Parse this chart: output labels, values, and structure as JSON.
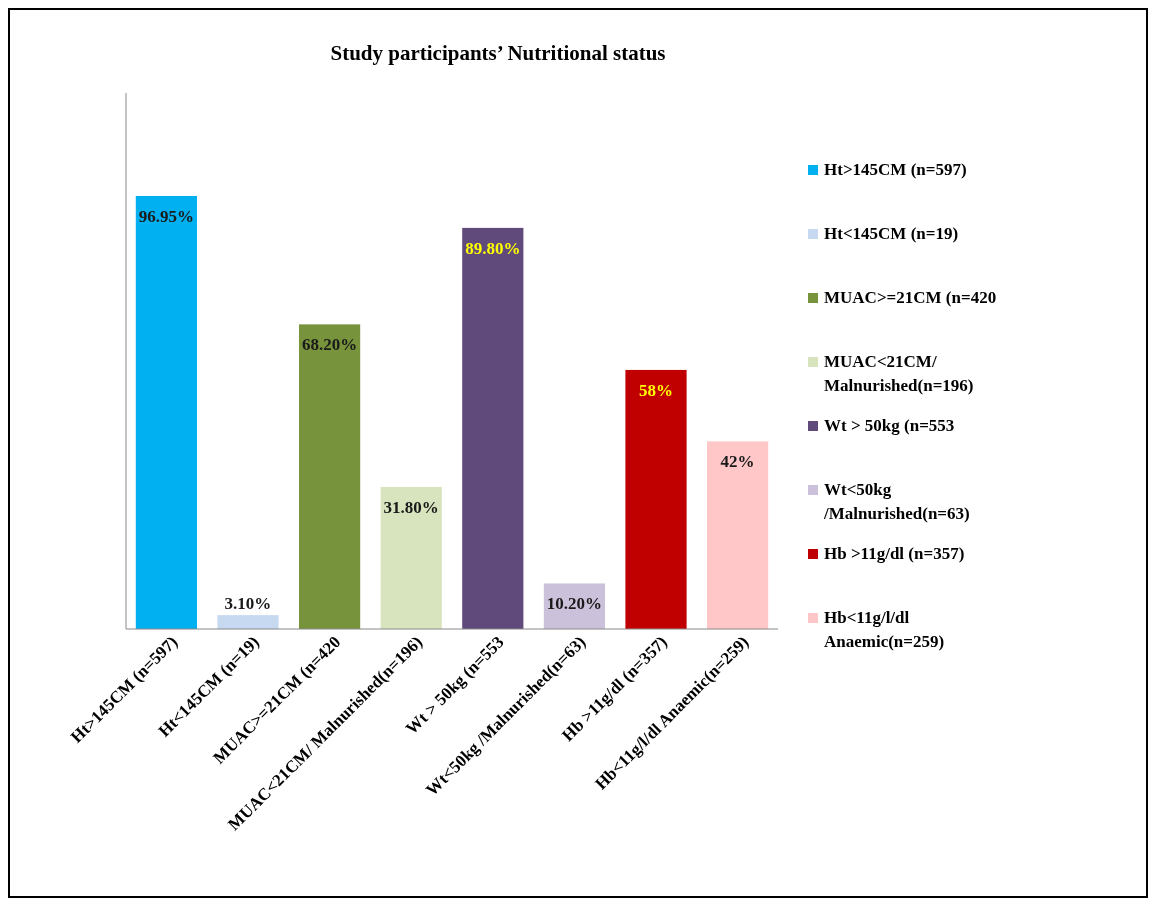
{
  "chart_data": {
    "type": "bar",
    "title": "Study participants’ Nutritional status",
    "categories": [
      "Ht>145CM (n=597)",
      "Ht<145CM (n=19)",
      "MUAC>=21CM (n=420",
      "MUAC<21CM/ Malnurished(n=196)",
      "Wt > 50kg (n=553",
      "Wt<50kg /Malnurished(n=63)",
      "Hb >11g/dl (n=357)",
      "Hb<11g/l/dl Anaemic(n=259)"
    ],
    "series": [
      {
        "name": "Ht>145CM (n=597)",
        "color": "#00b0f0",
        "values": [
          96.95,
          null,
          null,
          null,
          null,
          null,
          null,
          null
        ],
        "value_labels": [
          "96.95%",
          null,
          null,
          null,
          null,
          null,
          null,
          null
        ]
      },
      {
        "name": "Ht<145CM (n=19)",
        "color": "#c6d9f1",
        "values": [
          null,
          3.1,
          null,
          null,
          null,
          null,
          null,
          null
        ],
        "value_labels": [
          null,
          "3.10%",
          null,
          null,
          null,
          null,
          null,
          null
        ]
      },
      {
        "name": "MUAC>=21CM (n=420",
        "color": "#77933c",
        "values": [
          null,
          null,
          68.2,
          null,
          null,
          null,
          null,
          null
        ],
        "value_labels": [
          null,
          null,
          "68.20%",
          null,
          null,
          null,
          null,
          null
        ]
      },
      {
        "name": "MUAC<21CM/ Malnurished(n=196)",
        "color": "#d7e4bd",
        "values": [
          null,
          null,
          null,
          31.8,
          null,
          null,
          null,
          null
        ],
        "value_labels": [
          null,
          null,
          null,
          "31.80%",
          null,
          null,
          null,
          null
        ]
      },
      {
        "name": "Wt > 50kg (n=553",
        "color": "#604a7b",
        "values": [
          null,
          null,
          null,
          null,
          89.8,
          null,
          null,
          null
        ],
        "value_labels": [
          null,
          null,
          null,
          null,
          "89.80%",
          null,
          null,
          null
        ]
      },
      {
        "name": "Wt<50kg /Malnurished(n=63)",
        "color": "#ccc1da",
        "values": [
          null,
          null,
          null,
          null,
          null,
          10.2,
          null,
          null
        ],
        "value_labels": [
          null,
          null,
          null,
          null,
          null,
          "10.20%",
          null,
          null
        ]
      },
      {
        "name": "Hb >11g/dl (n=357)",
        "color": "#c00000",
        "values": [
          null,
          null,
          null,
          null,
          null,
          null,
          58,
          null
        ],
        "value_labels": [
          null,
          null,
          null,
          null,
          null,
          null,
          "58%",
          null
        ]
      },
      {
        "name": "Hb<11g/l/dl Anaemic(n=259)",
        "color": "#ffc7c7",
        "values": [
          null,
          null,
          null,
          null,
          null,
          null,
          null,
          42
        ],
        "value_labels": [
          null,
          null,
          null,
          null,
          null,
          null,
          null,
          "42%"
        ]
      }
    ],
    "ylim": [
      0,
      120
    ],
    "tick_labels": "x",
    "legend": "right"
  }
}
